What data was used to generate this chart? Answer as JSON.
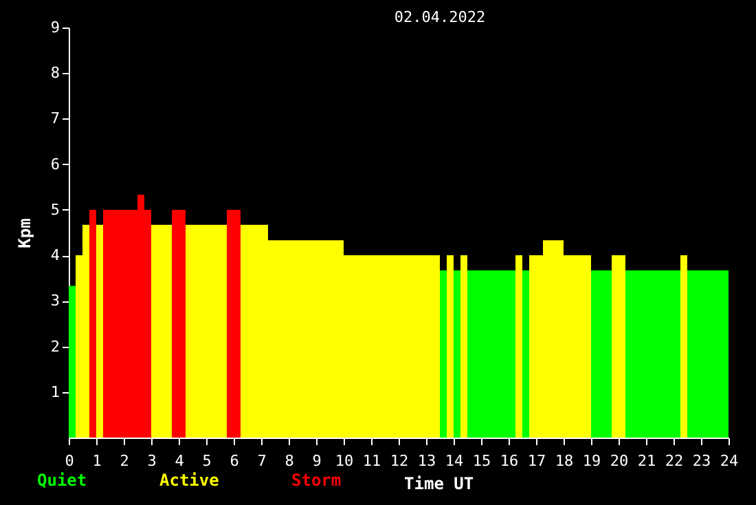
{
  "chart_data": {
    "type": "histogram",
    "title": "02.04.2022",
    "xlabel": "Time UT",
    "ylabel": "Kpm",
    "bins": [
      0,
      0.25,
      0.5,
      0.75,
      1,
      1.25,
      2.5,
      2.75,
      3,
      3.75,
      4.25,
      5.75,
      6.25,
      7.25,
      10,
      13.5,
      13.75,
      14,
      14.25,
      14.5,
      16.25,
      16.5,
      16.75,
      17.25,
      18,
      19,
      19.75,
      20.25,
      22.25,
      22.5,
      24
    ],
    "series": [
      {
        "name": "Quiet",
        "color": "#00ff00",
        "values": [
          3.33,
          null,
          null,
          null,
          null,
          null,
          null,
          null,
          null,
          null,
          null,
          null,
          null,
          null,
          null,
          3.67,
          null,
          3.67,
          null,
          3.67,
          null,
          3.67,
          null,
          null,
          null,
          3.67,
          null,
          3.67,
          null,
          3.67
        ]
      },
      {
        "name": "Active",
        "color": "#ffff00",
        "values": [
          null,
          4,
          4.67,
          null,
          4.67,
          null,
          null,
          null,
          4.67,
          null,
          4.67,
          null,
          4.67,
          4.33,
          4,
          null,
          4,
          null,
          4,
          null,
          4,
          null,
          4,
          4.33,
          4,
          null,
          4,
          null,
          4,
          null
        ]
      },
      {
        "name": "Storm",
        "color": "#ff0000",
        "values": [
          null,
          null,
          null,
          5,
          null,
          5,
          5.33,
          5,
          null,
          5,
          null,
          5,
          null,
          null,
          null,
          null,
          null,
          null,
          null,
          null,
          null,
          null,
          null,
          null,
          null,
          null,
          null,
          null,
          null,
          null
        ]
      }
    ],
    "xlim": [
      0,
      24
    ],
    "xticks": [
      0,
      1,
      2,
      3,
      4,
      5,
      6,
      7,
      8,
      9,
      10,
      11,
      12,
      13,
      14,
      15,
      16,
      17,
      18,
      19,
      20,
      21,
      22,
      23,
      24
    ],
    "ylim": [
      0,
      9
    ],
    "yticks": [
      1,
      2,
      3,
      4,
      5,
      6,
      7,
      8,
      9
    ],
    "legend": "bottom left"
  }
}
